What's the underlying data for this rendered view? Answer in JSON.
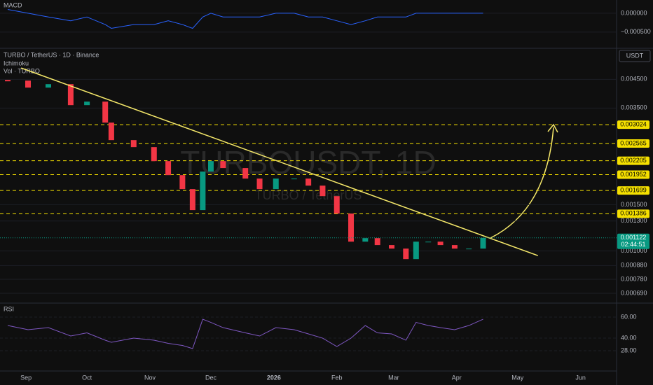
{
  "chart_data": [
    {
      "type": "line",
      "title": "MACD",
      "color": "#2962ff",
      "x": [
        -9,
        1,
        11,
        22,
        30,
        39,
        42,
        53,
        63,
        70,
        77,
        82,
        87,
        91,
        97,
        108,
        115,
        123,
        132,
        139,
        146,
        153,
        160,
        167,
        173,
        180,
        187,
        192,
        198,
        204,
        211,
        218,
        225
      ],
      "values": [
        0.0001,
        0,
        -0.0001,
        -0.0002,
        -0.0001,
        -0.0003,
        -0.0004,
        -0.0003,
        -0.0003,
        -0.0002,
        -0.0003,
        -0.0004,
        -0.0001,
        0,
        -0.0001,
        -0.0001,
        -0.0001,
        0,
        0,
        -0.0001,
        -0.0001,
        -0.0002,
        -0.0003,
        -0.0002,
        -0.0001,
        -0.0001,
        -0.0001,
        0,
        0,
        0,
        0,
        0,
        0
      ],
      "xlim": [
        -12.8,
        290.7
      ],
      "ylim": [
        -0.00091,
        0.00035
      ],
      "yticks": [
        {
          "value": 0,
          "label": "0.000000"
        },
        {
          "value": -0.0005,
          "label": "−0.000500"
        }
      ]
    },
    {
      "type": "candlestick",
      "title": "TURBO / TetherUS · 1D · Binance",
      "indicators": [
        "Ichimoku",
        "Vol · TURBO"
      ],
      "watermark": "TURBOUSDT, 1D",
      "watermark_subtitle": "TURBO / TetherUS",
      "currency": "USDT",
      "x": [
        -9,
        1,
        11,
        22,
        30,
        39,
        42,
        53,
        63,
        70,
        77,
        82,
        87,
        91,
        97,
        108,
        115,
        123,
        132,
        139,
        146,
        153,
        160,
        167,
        173,
        180,
        187,
        192,
        198,
        204,
        211,
        218,
        225
      ],
      "close": [
        0.004451,
        0.004186,
        0.004315,
        0.00359,
        0.003702,
        0.00308,
        0.002642,
        0.002485,
        0.002198,
        0.001944,
        0.00172,
        0.001431,
        0.002005,
        0.002198,
        0.002068,
        0.001886,
        0.00172,
        0.001886,
        0.001886,
        0.001773,
        0.001617,
        0.001388,
        0.001085,
        0.001119,
        0.001053,
        0.001021,
        0.000931,
        0.001085,
        0.001085,
        0.001053,
        0.001021,
        0.001021,
        0.001122
      ],
      "up_color": "#089981",
      "down_color": "#f23645",
      "log_scale": true,
      "xlim": [
        -12.8,
        290.7
      ],
      "ylim": [
        0.000645,
        0.0058
      ],
      "yticks": [
        {
          "value": 0.0045,
          "label": "0.004500"
        },
        {
          "value": 0.0035,
          "label": "0.003500"
        },
        {
          "value": 0.0015,
          "label": "0.001500"
        },
        {
          "value": 0.0013,
          "label": "0.001300"
        },
        {
          "value": 0.001,
          "label": "0.001000"
        },
        {
          "value": 0.00088,
          "label": "0.000880"
        },
        {
          "value": 0.00078,
          "label": "0.000780"
        },
        {
          "value": 0.00069,
          "label": "0.000690"
        }
      ],
      "levels": [
        0.003024,
        0.002565,
        0.002205,
        0.001952,
        0.001699,
        0.001386
      ],
      "level_color": "#f5e000",
      "last_price": 0.001122,
      "countdown": "02:44:51",
      "last_color": "#089981",
      "trendline": {
        "x": [
          -2.4,
          252
        ],
        "values": [
          0.004971,
          0.00096
        ],
        "color": "#f5e86a"
      }
    },
    {
      "type": "line",
      "title": "RSI",
      "color": "#7e57c2",
      "x": [
        -9,
        1,
        11,
        22,
        30,
        39,
        42,
        53,
        63,
        70,
        77,
        82,
        87,
        91,
        97,
        108,
        115,
        123,
        132,
        139,
        146,
        153,
        160,
        167,
        173,
        180,
        187,
        192,
        198,
        204,
        211,
        218,
        225
      ],
      "values": [
        52,
        48,
        50,
        42,
        45,
        38,
        36,
        40,
        38,
        35,
        33,
        30,
        58,
        55,
        50,
        45,
        42,
        50,
        48,
        44,
        40,
        32,
        40,
        52,
        45,
        44,
        38,
        55,
        52,
        50,
        48,
        52,
        58
      ],
      "xlim": [
        -12.8,
        290.7
      ],
      "ylim": [
        10,
        70.7
      ],
      "yticks": [
        {
          "value": 60,
          "label": "60.00"
        },
        {
          "value": 40,
          "label": "40.00"
        },
        {
          "value": 28,
          "label": "28.00"
        }
      ],
      "xticks": [
        {
          "value": 0,
          "label": "Sep"
        },
        {
          "value": 30,
          "label": "Oct"
        },
        {
          "value": 61,
          "label": "Nov"
        },
        {
          "value": 91,
          "label": "Dec"
        },
        {
          "value": 122,
          "label": "2026"
        },
        {
          "value": 153,
          "label": "Feb"
        },
        {
          "value": 181,
          "label": "Mar"
        },
        {
          "value": 212,
          "label": "Apr"
        },
        {
          "value": 242,
          "label": "May"
        },
        {
          "value": 273,
          "label": "Jun"
        }
      ]
    }
  ]
}
